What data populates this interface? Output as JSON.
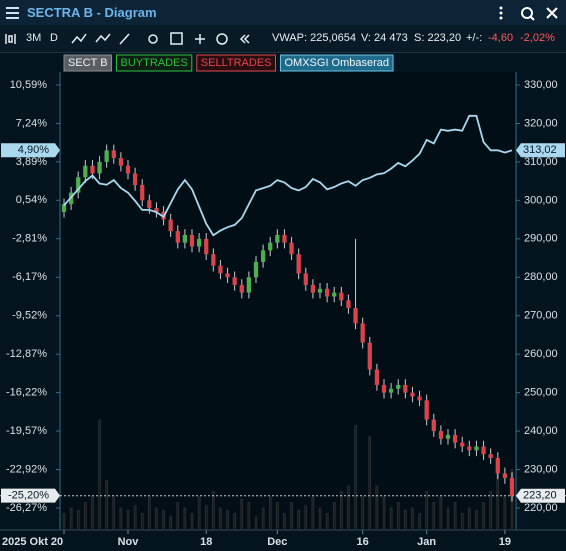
{
  "window": {
    "title": "SECTRA B - Diagram"
  },
  "toolbar": {
    "range": "3M",
    "interval": "D",
    "vwap": "VWAP: 225,0654",
    "volume": "V: 24 473",
    "last": "S: 223,20",
    "change_label": "+/-:",
    "change": "-4,60",
    "change_pct": "-2,02%"
  },
  "chart_data": {
    "type": "candlestick",
    "categories": [
      "2025 Okt 20",
      null,
      null,
      null,
      null,
      null,
      null,
      null,
      null,
      "Nov",
      null,
      null,
      null,
      null,
      null,
      null,
      null,
      null,
      null,
      null,
      "18",
      null,
      null,
      null,
      null,
      null,
      null,
      null,
      null,
      null,
      "Dec",
      null,
      null,
      null,
      null,
      null,
      null,
      null,
      null,
      null,
      null,
      null,
      "16",
      null,
      null,
      null,
      null,
      null,
      null,
      null,
      null,
      "Jan",
      null,
      null,
      null,
      null,
      null,
      null,
      null,
      null,
      null,
      null,
      "19",
      null
    ],
    "series": [
      {
        "name": "SECT B",
        "axis": "y2",
        "up_color": "#4caf50",
        "down_color": "#d9434b",
        "open": [
          297,
          299,
          302,
          306,
          309,
          307,
          310,
          313,
          311,
          309,
          307,
          304,
          300,
          298,
          297,
          295,
          292,
          289,
          291,
          288,
          290,
          286,
          283,
          281,
          280,
          278,
          276,
          280,
          284,
          287,
          289,
          291,
          289,
          286,
          281,
          278,
          276,
          277,
          275,
          276,
          274,
          272,
          268,
          263,
          256,
          252,
          250,
          251,
          252,
          250,
          249,
          248,
          243,
          240,
          238,
          239,
          237,
          236,
          235,
          236,
          234,
          233,
          229,
          227.8
        ],
        "high": [
          300.5,
          303.5,
          307.5,
          310.5,
          310.5,
          311.5,
          314.5,
          314.5,
          312.5,
          310.5,
          308.5,
          305.5,
          301.5,
          299.5,
          298.5,
          296.5,
          293.5,
          292.5,
          292.5,
          291.5,
          291.5,
          287.5,
          284.5,
          282.5,
          281.5,
          279.5,
          281.5,
          285.5,
          288.5,
          290.5,
          292.5,
          292.5,
          290.5,
          287.5,
          282.5,
          279.5,
          278.5,
          278.5,
          277.5,
          277.5,
          275.5,
          290,
          269.5,
          264.5,
          257.5,
          253.5,
          252.5,
          253.5,
          253.5,
          251.5,
          250.5,
          249.5,
          244.5,
          241.5,
          240.5,
          240.5,
          238.5,
          237.5,
          237.5,
          237.5,
          235.5,
          234.5,
          230.5,
          229.3
        ],
        "low": [
          295.5,
          297.5,
          300.5,
          304.5,
          305.5,
          305.5,
          308.5,
          309.5,
          307.5,
          305.5,
          302.5,
          298.5,
          296.5,
          295.5,
          293.5,
          290.5,
          287.5,
          287.5,
          286.5,
          286.5,
          284.5,
          281.5,
          279.5,
          278.5,
          276.5,
          274.5,
          274.5,
          278.5,
          282.5,
          285.5,
          287.5,
          287.5,
          284.5,
          279.5,
          276.5,
          274.5,
          274.5,
          273.5,
          273.5,
          272.5,
          270.5,
          266.5,
          261.5,
          254.5,
          250.5,
          248.5,
          248.5,
          249.5,
          248.5,
          247.5,
          246.5,
          241.5,
          238.5,
          236.5,
          236.5,
          235.5,
          234.5,
          233.5,
          233.5,
          232.5,
          231.5,
          227.5,
          226.3,
          221.7
        ],
        "close": [
          299,
          302,
          306,
          309,
          307,
          310,
          313,
          311,
          309,
          307,
          304,
          300,
          298,
          297,
          295,
          292,
          289,
          291,
          288,
          290,
          286,
          283,
          281,
          280,
          278,
          276,
          280,
          284,
          287,
          289,
          291,
          289,
          286,
          281,
          278,
          276,
          277,
          275,
          276,
          274,
          272,
          268,
          263,
          256,
          252,
          250,
          251,
          252,
          250,
          249,
          248,
          243,
          240,
          238,
          239,
          237,
          236,
          235,
          236,
          234,
          233,
          229,
          227.8,
          223.2
        ],
        "volume": [
          15,
          20,
          18,
          25,
          30,
          100,
          45,
          30,
          20,
          18,
          22,
          15,
          30,
          20,
          18,
          12,
          25,
          20,
          15,
          30,
          22,
          35,
          20,
          18,
          15,
          28,
          25,
          12,
          20,
          30,
          25,
          15,
          25,
          18,
          22,
          30,
          20,
          15,
          25,
          35,
          40,
          95,
          30,
          85,
          40,
          30,
          20,
          25,
          18,
          20,
          15,
          35,
          25,
          30,
          20,
          25,
          15,
          20,
          18,
          25,
          35,
          60,
          30,
          55
        ],
        "volume_color": "#c8ccd0"
      },
      {
        "name": "BUYTRADES",
        "color": "#2fbf3a"
      },
      {
        "name": "SELLTRADES",
        "color": "#e0474f"
      },
      {
        "name": "OMXSGI Ombaserad",
        "axis": "y",
        "color": "#a9d8ef",
        "values": [
          0.1,
          0.8,
          1.5,
          2.2,
          2.7,
          2.0,
          1.9,
          2.3,
          1.6,
          1.2,
          0.5,
          -0.3,
          -0.3,
          -0.5,
          -0.9,
          0.3,
          1.5,
          2.3,
          1.5,
          0.0,
          -1.5,
          -2.5,
          -2.1,
          -1.8,
          -1.6,
          -1.0,
          0.2,
          1.4,
          1.6,
          1.8,
          2.3,
          2.1,
          1.6,
          1.4,
          1.7,
          2.4,
          2.1,
          1.5,
          1.7,
          2.0,
          2.2,
          1.8,
          2.3,
          2.5,
          2.8,
          2.9,
          3.3,
          3.8,
          3.5,
          4.0,
          4.6,
          5.8,
          5.5,
          6.7,
          6.6,
          6.7,
          6.6,
          7.9,
          7.9,
          5.6,
          4.9,
          4.9,
          4.7,
          4.9
        ]
      }
    ],
    "ylim": [
      -28.19,
      11.72
    ],
    "yticks": [
      {
        "value": 10.59,
        "label": "10,59%"
      },
      {
        "value": 7.24,
        "label": "7,24%"
      },
      {
        "value": 3.89,
        "label": "3,89%"
      },
      {
        "value": 0.54,
        "label": "0,54%"
      },
      {
        "value": -2.81,
        "label": "-2,81%"
      },
      {
        "value": -6.17,
        "label": "-6,17%"
      },
      {
        "value": -9.52,
        "label": "-9,52%"
      },
      {
        "value": -12.87,
        "label": "-12,87%"
      },
      {
        "value": -16.22,
        "label": "-16,22%"
      },
      {
        "value": -19.57,
        "label": "-19,57%"
      },
      {
        "value": -22.92,
        "label": "-22,92%"
      },
      {
        "value": -26.27,
        "label": "-26,27%"
      }
    ],
    "y2lim": [
      214.28,
      333.38
    ],
    "y2ticks": [
      {
        "value": 330,
        "label": "330,00"
      },
      {
        "value": 320,
        "label": "320,00"
      },
      {
        "value": 310,
        "label": "310,00"
      },
      {
        "value": 300,
        "label": "300,00"
      },
      {
        "value": 290,
        "label": "290,00"
      },
      {
        "value": 280,
        "label": "280,00"
      },
      {
        "value": 270,
        "label": "270,00"
      },
      {
        "value": 260,
        "label": "260,00"
      },
      {
        "value": 250,
        "label": "250,00"
      },
      {
        "value": 240,
        "label": "240,00"
      },
      {
        "value": 230,
        "label": "230,00"
      },
      {
        "value": 220,
        "label": "220,00"
      }
    ],
    "markers": [
      {
        "axis": "y",
        "value": 4.9,
        "label": "4,90%",
        "color": "#a9d8ef"
      },
      {
        "axis": "y",
        "value": -25.2,
        "label": "-25,20%",
        "color": "#e8ecef"
      },
      {
        "axis": "y2",
        "value": 313.02,
        "label": "313,02",
        "color": "#a9d8ef"
      },
      {
        "axis": "y2",
        "value": 223.2,
        "label": "223,20",
        "color": "#e8ecef"
      }
    ],
    "last_price_line": 223.2
  }
}
